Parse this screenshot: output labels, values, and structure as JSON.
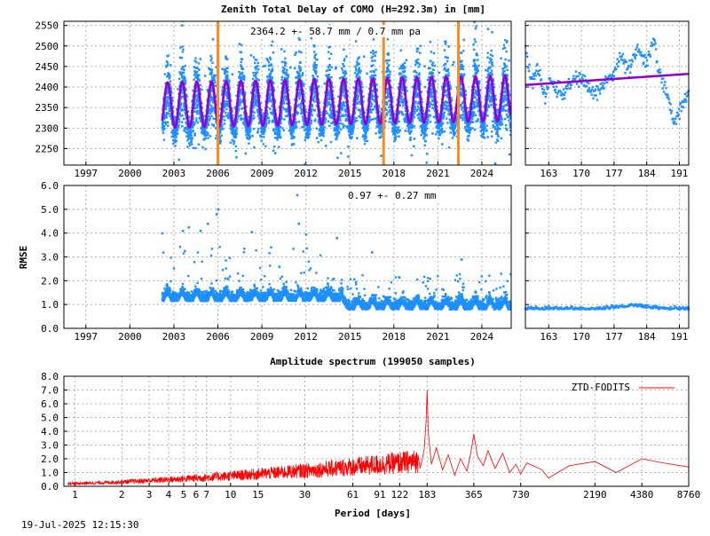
{
  "header": {
    "title": "Zenith Total Delay of COMO (H=292.3m) in [mm]",
    "ztd_stat": "2364.2 +-  58.7 mm /  0.7 mm pa",
    "rmse_stat": "0.97 +-  0.27 mm",
    "timestamp": "19-Jul-2025 12:15:30"
  },
  "colors": {
    "data_points": "#1e90ff",
    "model_fit": "#9400d3",
    "event_lines": "#ff8c1a",
    "spectrum": "#ff0000",
    "grid": "#b0b0b0"
  },
  "chart_data": [
    {
      "type": "scatter",
      "panel": "ztd-long-term",
      "title": "Zenith Total Delay of COMO (H=292.3m) in [mm]",
      "ylabel": "",
      "xlim": [
        1995.5,
        2026.0
      ],
      "ylim": [
        2210,
        2560
      ],
      "x_ticks": [
        1997,
        2000,
        2003,
        2006,
        2009,
        2012,
        2015,
        2018,
        2021,
        2024
      ],
      "x_tick_labels": [
        "1997",
        "2000",
        "2003",
        "2006",
        "2009",
        "2012",
        "2015",
        "2018",
        "2021",
        "2024"
      ],
      "y_ticks": [
        2250,
        2300,
        2350,
        2400,
        2450,
        2500,
        2550
      ],
      "y_tick_labels": [
        "2250",
        "2300",
        "2350",
        "2400",
        "2450",
        "2500",
        "2550"
      ],
      "data_start": 2002.2,
      "data_end": 2025.95,
      "mean": 2364.2,
      "std": 58.7,
      "trend_mm_per_year": 0.7,
      "seasonal_amplitude": 55,
      "event_lines_x": [
        2006.0,
        2017.3,
        2022.4
      ],
      "annotation": "2364.2 +-  58.7 mm /  0.7 mm pa"
    },
    {
      "type": "scatter",
      "panel": "ztd-recent-days",
      "xlim": [
        158,
        193
      ],
      "ylim": [
        2210,
        2560
      ],
      "x_ticks": [
        163,
        170,
        177,
        184,
        191
      ],
      "x_tick_labels": [
        "163",
        "170",
        "177",
        "184",
        "191"
      ],
      "trend_start": [
        158,
        2405
      ],
      "trend_end": [
        193,
        2432
      ]
    },
    {
      "type": "scatter",
      "panel": "rmse-long-term",
      "ylabel": "RMSE",
      "xlim": [
        1995.5,
        2026.0
      ],
      "ylim": [
        0.0,
        6.0
      ],
      "x_ticks": [
        1997,
        2000,
        2003,
        2006,
        2009,
        2012,
        2015,
        2018,
        2021,
        2024
      ],
      "x_tick_labels": [
        "1997",
        "2000",
        "2003",
        "2006",
        "2009",
        "2012",
        "2015",
        "2018",
        "2021",
        "2024"
      ],
      "y_ticks": [
        0.0,
        1.0,
        2.0,
        3.0,
        4.0,
        5.0,
        6.0
      ],
      "y_tick_labels": [
        "0.0",
        "1.0",
        "2.0",
        "3.0",
        "4.0",
        "5.0",
        "6.0"
      ],
      "mean": 0.97,
      "std": 0.27,
      "annotation": "0.97 +-  0.27 mm"
    },
    {
      "type": "scatter",
      "panel": "rmse-recent-days",
      "xlim": [
        158,
        193
      ],
      "ylim": [
        0.0,
        6.0
      ],
      "x_ticks": [
        163,
        170,
        177,
        184,
        191
      ],
      "x_tick_labels": [
        "163",
        "170",
        "177",
        "184",
        "191"
      ]
    },
    {
      "type": "line",
      "panel": "amplitude-spectrum",
      "title": "Amplitude spectrum (199050 samples)",
      "xlabel": "Period [days]",
      "xscale": "log",
      "xlim": [
        0.85,
        8760
      ],
      "ylim": [
        0.0,
        8.0
      ],
      "x_ticks": [
        1,
        2,
        3,
        4,
        5,
        6,
        7,
        10,
        15,
        30,
        61,
        91,
        122,
        183,
        365,
        730,
        2190,
        4380,
        8760
      ],
      "x_tick_labels": [
        "1",
        "2",
        "3",
        "4",
        "5",
        "6",
        "7",
        "10",
        "15",
        "30",
        "61",
        "91",
        "122",
        "183",
        "365",
        "730",
        "2190",
        "4380",
        "8760"
      ],
      "y_ticks": [
        0.0,
        1.0,
        2.0,
        3.0,
        4.0,
        5.0,
        6.0,
        7.0,
        8.0
      ],
      "y_tick_labels": [
        "0.0",
        "1.0",
        "2.0",
        "3.0",
        "4.0",
        "5.0",
        "6.0",
        "7.0",
        "8.0"
      ],
      "legend": "top-right",
      "series": [
        {
          "name": "ZTD-FODITS"
        }
      ],
      "peaks": [
        {
          "period": 183,
          "amplitude": 7.0
        },
        {
          "period": 365,
          "amplitude": 3.8
        },
        {
          "period": 730,
          "amplitude": 1.7
        },
        {
          "period": 1500,
          "amplitude": 1.8
        },
        {
          "period": 4380,
          "amplitude": 2.0
        }
      ]
    }
  ]
}
